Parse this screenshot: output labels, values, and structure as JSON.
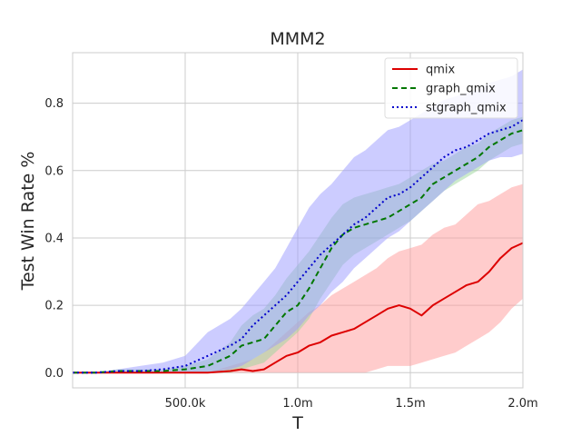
{
  "chart_data": {
    "type": "line",
    "title": "MMM2",
    "xlabel": "T",
    "ylabel": "Test Win Rate %",
    "xlim": [
      0,
      2000000
    ],
    "ylim": [
      -0.045,
      0.95
    ],
    "xticks": [
      {
        "value": 500000,
        "label": "500.0k"
      },
      {
        "value": 1000000,
        "label": "1.0m"
      },
      {
        "value": 1500000,
        "label": "1.5m"
      },
      {
        "value": 2000000,
        "label": "2.0m"
      }
    ],
    "yticks": [
      {
        "value": 0.0,
        "label": "0.0"
      },
      {
        "value": 0.2,
        "label": "0.2"
      },
      {
        "value": 0.4,
        "label": "0.4"
      },
      {
        "value": 0.6,
        "label": "0.6"
      },
      {
        "value": 0.8,
        "label": "0.8"
      }
    ],
    "grid": true,
    "legend_position": "top-right",
    "x": [
      0,
      100000,
      200000,
      300000,
      400000,
      500000,
      600000,
      700000,
      750000,
      800000,
      850000,
      900000,
      950000,
      1000000,
      1050000,
      1100000,
      1150000,
      1200000,
      1250000,
      1300000,
      1350000,
      1400000,
      1450000,
      1500000,
      1550000,
      1600000,
      1650000,
      1700000,
      1750000,
      1800000,
      1850000,
      1900000,
      1950000,
      2000000
    ],
    "series": [
      {
        "name": "qmix",
        "color": "#dd0000",
        "fill": "#ff9999",
        "dash": "solid",
        "values": [
          0.0,
          0.0,
          0.0,
          0.0,
          0.0,
          0.0,
          0.0,
          0.005,
          0.01,
          0.005,
          0.01,
          0.03,
          0.05,
          0.06,
          0.08,
          0.09,
          0.11,
          0.12,
          0.13,
          0.15,
          0.17,
          0.19,
          0.2,
          0.19,
          0.17,
          0.2,
          0.22,
          0.24,
          0.26,
          0.27,
          0.3,
          0.34,
          0.37,
          0.385
        ],
        "lower": [
          0.0,
          0.0,
          0.0,
          0.0,
          0.0,
          0.0,
          0.0,
          0.0,
          0.0,
          0.0,
          0.0,
          0.0,
          0.0,
          0.0,
          0.0,
          0.0,
          0.0,
          0.0,
          0.0,
          0.0,
          0.01,
          0.02,
          0.02,
          0.02,
          0.03,
          0.04,
          0.05,
          0.06,
          0.08,
          0.1,
          0.12,
          0.15,
          0.19,
          0.22
        ],
        "upper": [
          0.0,
          0.0,
          0.0,
          0.0,
          0.0,
          0.0,
          0.0,
          0.02,
          0.03,
          0.04,
          0.06,
          0.09,
          0.12,
          0.15,
          0.18,
          0.2,
          0.23,
          0.25,
          0.27,
          0.29,
          0.31,
          0.34,
          0.36,
          0.37,
          0.38,
          0.41,
          0.43,
          0.44,
          0.47,
          0.5,
          0.51,
          0.53,
          0.55,
          0.56
        ]
      },
      {
        "name": "graph_qmix",
        "color": "#007700",
        "fill": "#99d699",
        "dash": "6,4",
        "values": [
          0.0,
          0.0,
          0.005,
          0.005,
          0.005,
          0.01,
          0.02,
          0.05,
          0.08,
          0.09,
          0.1,
          0.14,
          0.18,
          0.2,
          0.25,
          0.31,
          0.37,
          0.41,
          0.43,
          0.44,
          0.45,
          0.46,
          0.48,
          0.5,
          0.52,
          0.56,
          0.58,
          0.6,
          0.62,
          0.64,
          0.67,
          0.69,
          0.71,
          0.72
        ],
        "lower": [
          0.0,
          0.0,
          0.0,
          0.0,
          0.0,
          0.0,
          0.0,
          0.0,
          0.01,
          0.02,
          0.03,
          0.06,
          0.09,
          0.12,
          0.16,
          0.22,
          0.27,
          0.32,
          0.35,
          0.37,
          0.39,
          0.41,
          0.43,
          0.45,
          0.48,
          0.51,
          0.54,
          0.56,
          0.58,
          0.6,
          0.63,
          0.65,
          0.67,
          0.68
        ],
        "upper": [
          0.0,
          0.0,
          0.01,
          0.01,
          0.01,
          0.02,
          0.04,
          0.09,
          0.14,
          0.17,
          0.19,
          0.23,
          0.28,
          0.32,
          0.36,
          0.41,
          0.46,
          0.5,
          0.52,
          0.53,
          0.54,
          0.55,
          0.56,
          0.58,
          0.6,
          0.62,
          0.63,
          0.65,
          0.67,
          0.68,
          0.71,
          0.73,
          0.75,
          0.76
        ]
      },
      {
        "name": "stgraph_qmix",
        "color": "#0000cc",
        "fill": "#9999ff",
        "dash": "2,3",
        "values": [
          0.0,
          0.0,
          0.005,
          0.005,
          0.01,
          0.02,
          0.05,
          0.08,
          0.1,
          0.14,
          0.17,
          0.2,
          0.23,
          0.27,
          0.31,
          0.35,
          0.38,
          0.41,
          0.44,
          0.46,
          0.49,
          0.52,
          0.53,
          0.55,
          0.58,
          0.61,
          0.64,
          0.66,
          0.67,
          0.69,
          0.71,
          0.72,
          0.73,
          0.75
        ],
        "lower": [
          0.0,
          0.0,
          0.0,
          0.0,
          0.0,
          0.0,
          0.0,
          0.01,
          0.02,
          0.04,
          0.06,
          0.08,
          0.1,
          0.13,
          0.17,
          0.2,
          0.24,
          0.27,
          0.31,
          0.34,
          0.37,
          0.4,
          0.42,
          0.45,
          0.48,
          0.51,
          0.54,
          0.57,
          0.59,
          0.61,
          0.63,
          0.64,
          0.64,
          0.65
        ],
        "upper": [
          0.0,
          0.0,
          0.01,
          0.02,
          0.03,
          0.05,
          0.12,
          0.16,
          0.19,
          0.23,
          0.27,
          0.31,
          0.37,
          0.43,
          0.49,
          0.53,
          0.56,
          0.6,
          0.64,
          0.66,
          0.69,
          0.72,
          0.73,
          0.75,
          0.77,
          0.79,
          0.81,
          0.82,
          0.83,
          0.84,
          0.86,
          0.87,
          0.88,
          0.9
        ]
      }
    ]
  }
}
